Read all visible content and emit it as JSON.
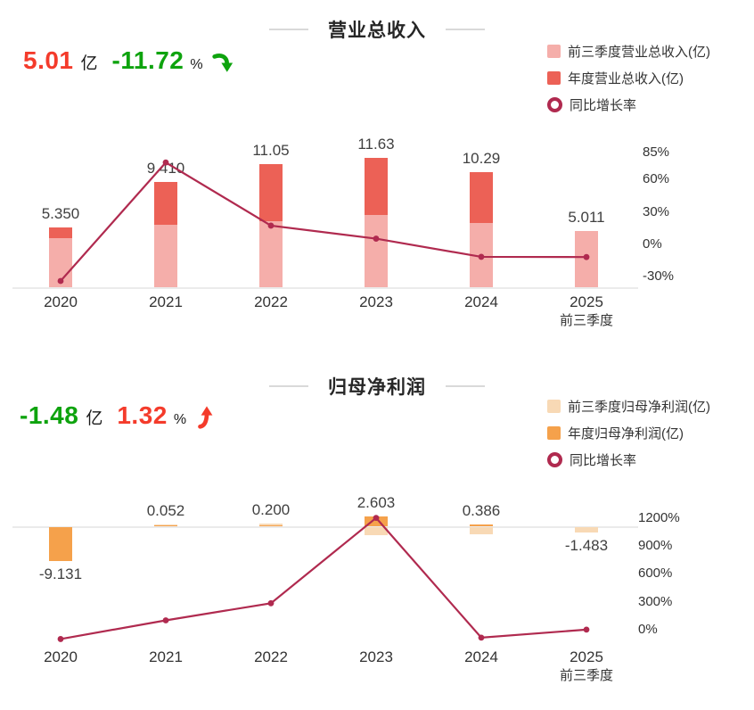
{
  "colors": {
    "pink": "#f5aeaa",
    "red_bar": "#ec6156",
    "orange": "#f5a14b",
    "light_orange": "#f8d9b5",
    "growth_line": "#b02a4f",
    "red_text": "#f43b2b",
    "green_text": "#0ea30e",
    "axis_line": "#ebebeb",
    "text_dark": "#262626",
    "text_label": "#404040"
  },
  "chart_data": [
    {
      "type": "bar",
      "title": "营业总收入",
      "summary": {
        "value": "5.01",
        "unit": "亿",
        "pct": "-11.72",
        "pct_unit": "%",
        "value_color": "#f43b2b",
        "pct_color": "#0ea30e",
        "arrow": "down",
        "arrow_color": "#0ea30e"
      },
      "legend": [
        {
          "label": "前三季度营业总收入(亿)",
          "color": "#f5aeaa",
          "shape": "square"
        },
        {
          "label": "年度营业总收入(亿)",
          "color": "#ec6156",
          "shape": "square"
        },
        {
          "label": "同比增长率",
          "color": "#b02a4f",
          "shape": "ring"
        }
      ],
      "categories": [
        "2020",
        "2021",
        "2022",
        "2023",
        "2024",
        "2025"
      ],
      "x_sub_labels": [
        null,
        null,
        null,
        null,
        null,
        "前三季度"
      ],
      "series": [
        {
          "name": "前三季度营业总收入(亿)",
          "values": [
            4.4,
            5.6,
            5.9,
            6.5,
            5.8,
            5.011
          ],
          "estimated_from_pixels": true
        },
        {
          "name": "年度营业总收入(亿)",
          "values": [
            5.35,
            9.41,
            11.05,
            11.63,
            10.29,
            null
          ]
        },
        {
          "name": "同比增长率",
          "axis": "percent",
          "values": [
            -33.9,
            75.9,
            17.4,
            5.3,
            -11.5,
            -11.72
          ]
        }
      ],
      "bar_labels": [
        "5.350",
        "9.410",
        "11.05",
        "11.63",
        "10.29",
        "5.011"
      ],
      "y2_ticks": [
        {
          "label": "85%",
          "value": 85
        },
        {
          "label": "60%",
          "value": 60
        },
        {
          "label": "30%",
          "value": 30
        },
        {
          "label": "0%",
          "value": 0
        },
        {
          "label": "-30%",
          "value": -30
        }
      ],
      "legend_position": "top-right",
      "grid": false
    },
    {
      "type": "bar",
      "title": "归母净利润",
      "summary": {
        "value": "-1.48",
        "unit": "亿",
        "pct": "1.32",
        "pct_unit": "%",
        "value_color": "#0ea30e",
        "pct_color": "#f43b2b",
        "arrow": "up",
        "arrow_color": "#f43b2b"
      },
      "legend": [
        {
          "label": "前三季度归母净利润(亿)",
          "color": "#f8d9b5",
          "shape": "square"
        },
        {
          "label": "年度归母净利润(亿)",
          "color": "#f5a14b",
          "shape": "square"
        },
        {
          "label": "同比增长率",
          "color": "#b02a4f",
          "shape": "ring"
        }
      ],
      "categories": [
        "2020",
        "2021",
        "2022",
        "2023",
        "2024",
        "2025"
      ],
      "x_sub_labels": [
        null,
        null,
        null,
        null,
        null,
        "前三季度"
      ],
      "series": [
        {
          "name": "前三季度归母净利润(亿)",
          "values": [
            null,
            0.4,
            0.7,
            -2.2,
            -2.0,
            -1.483
          ],
          "estimated_from_pixels": true
        },
        {
          "name": "年度归母净利润(亿)",
          "values": [
            -9.131,
            0.052,
            0.2,
            2.603,
            0.386,
            null
          ]
        },
        {
          "name": "同比增长率",
          "axis": "percent",
          "values": [
            -100,
            100.6,
            284.6,
            1201.5,
            -85.2,
            1.32
          ]
        }
      ],
      "bar_labels": [
        "-9.131",
        "0.052",
        "0.200",
        "2.603",
        "0.386",
        "-1.483"
      ],
      "y2_ticks": [
        {
          "label": "1200%",
          "value": 1200
        },
        {
          "label": "900%",
          "value": 900
        },
        {
          "label": "600%",
          "value": 600
        },
        {
          "label": "300%",
          "value": 300
        },
        {
          "label": "0%",
          "value": 0
        }
      ],
      "legend_position": "top-right",
      "grid": false
    }
  ]
}
